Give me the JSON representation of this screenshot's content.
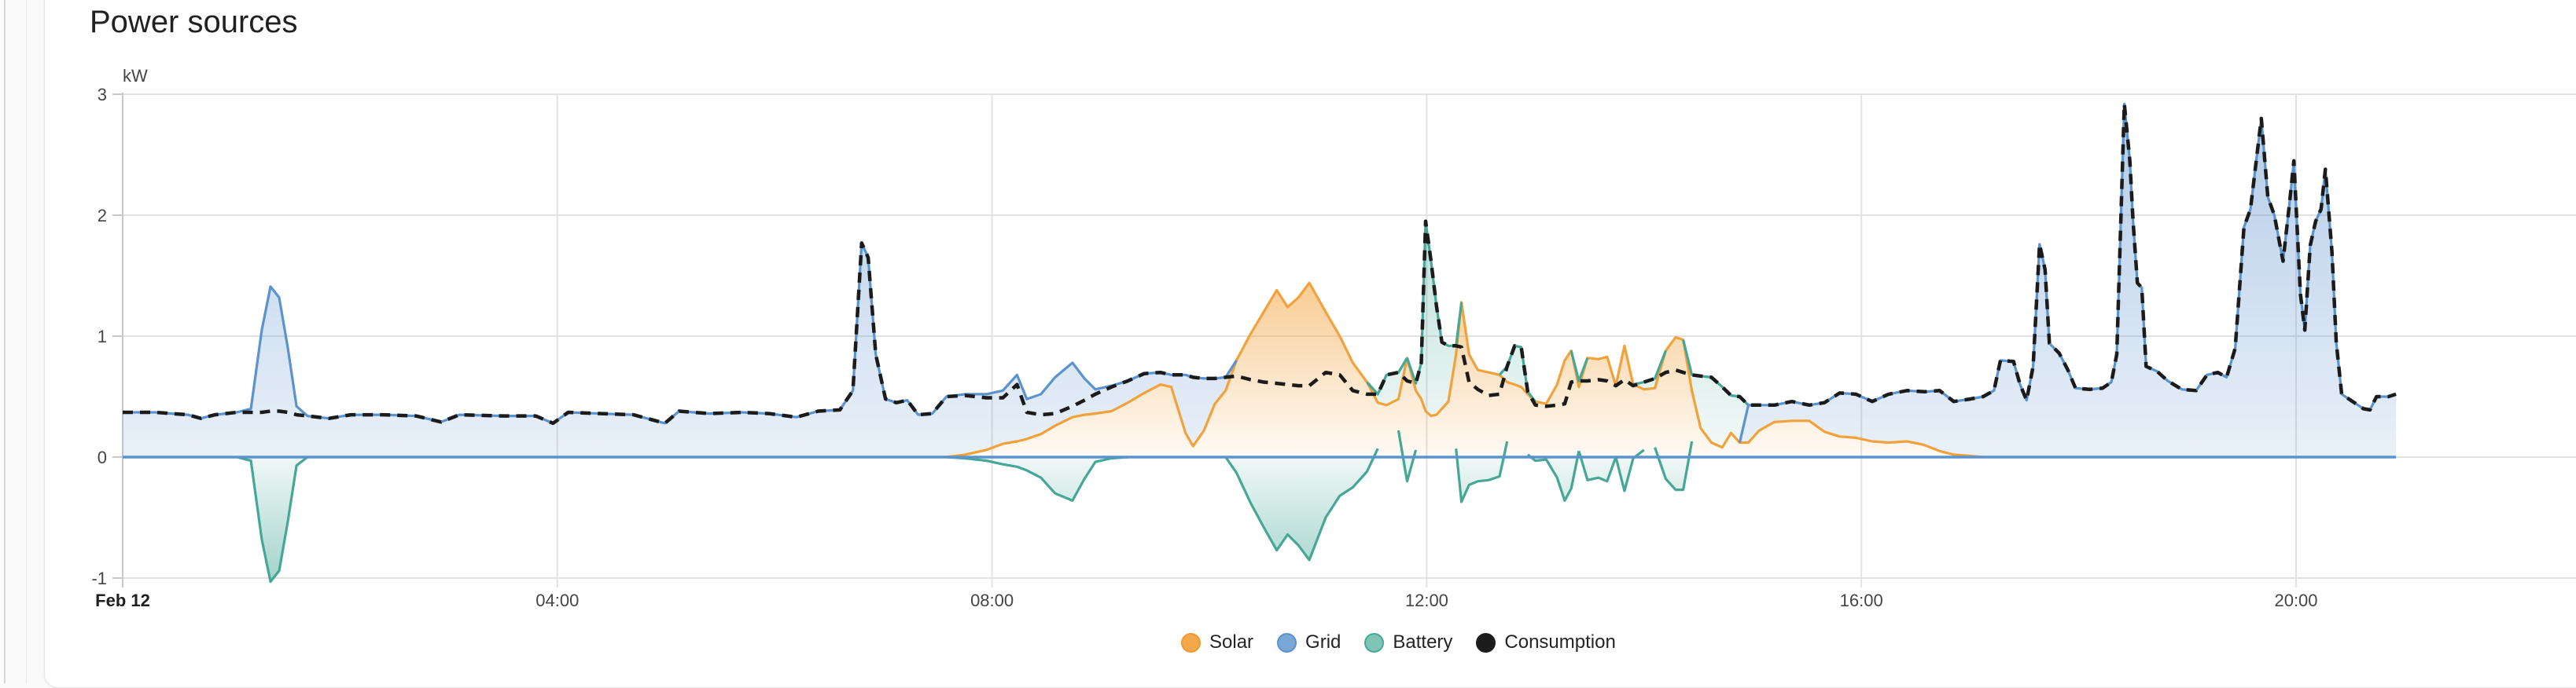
{
  "card": {
    "title": "Power sources"
  },
  "chart_data": {
    "type": "area",
    "stacked": true,
    "title": "Power sources",
    "unit": "kW",
    "grid": true,
    "legend_position": "bottom",
    "x_axis": {
      "start_label": "Feb 12",
      "start_hour": 0,
      "end_hour": 20.92,
      "ticks": [
        {
          "hour": 4,
          "label": "04:00"
        },
        {
          "hour": 8,
          "label": "08:00"
        },
        {
          "hour": 12,
          "label": "12:00"
        },
        {
          "hour": 16,
          "label": "16:00"
        },
        {
          "hour": 20,
          "label": "20:00"
        }
      ]
    },
    "y_axis": {
      "unit": "kW",
      "ticks": [
        3,
        2,
        1,
        0,
        -1
      ],
      "range": [
        -1,
        3
      ]
    },
    "legend": [
      {
        "name": "solar",
        "label": "Solar",
        "fill": "#F5A84B",
        "border": "#ED9B32"
      },
      {
        "name": "grid",
        "label": "Grid",
        "fill": "#7BA7D8",
        "border": "#5B93CE"
      },
      {
        "name": "battery",
        "label": "Battery",
        "fill": "#7FC4B5",
        "border": "#46A797"
      },
      {
        "name": "consumption",
        "label": "Consumption",
        "fill": "#1C1C1C",
        "border": "#1C1C1C"
      }
    ],
    "colors": {
      "solar_line": "#F2A23C",
      "grid_line": "#5B93CE",
      "battery_line": "#46A797",
      "consumption_line": "#1B1B1B",
      "gridline": "#E2E2E2",
      "axis": "#C7C7C7",
      "label": "#454545"
    },
    "series_stack_order": [
      "solar",
      "grid",
      "battery"
    ],
    "columns": [
      "hour",
      "solar_kw",
      "grid_kw",
      "battery_kw",
      "consumption_kw"
    ],
    "samples": [
      [
        0.0,
        0,
        0.37,
        0,
        0.37
      ],
      [
        0.3,
        0,
        0.37,
        0,
        0.37
      ],
      [
        0.6,
        0,
        0.35,
        0,
        0.35
      ],
      [
        0.72,
        0,
        0.32,
        0,
        0.32
      ],
      [
        0.85,
        0,
        0.35,
        0,
        0.35
      ],
      [
        1.05,
        0,
        0.37,
        0,
        0.37
      ],
      [
        1.18,
        0,
        0.4,
        -0.03,
        0.37
      ],
      [
        1.28,
        0,
        1.05,
        -0.68,
        0.37
      ],
      [
        1.36,
        0,
        1.41,
        -1.03,
        0.38
      ],
      [
        1.44,
        0,
        1.32,
        -0.94,
        0.38
      ],
      [
        1.52,
        0,
        0.9,
        -0.53,
        0.37
      ],
      [
        1.6,
        0,
        0.42,
        -0.07,
        0.35
      ],
      [
        1.7,
        0,
        0.34,
        0,
        0.34
      ],
      [
        1.9,
        0,
        0.32,
        0,
        0.32
      ],
      [
        2.1,
        0,
        0.35,
        0,
        0.35
      ],
      [
        2.4,
        0,
        0.35,
        0,
        0.35
      ],
      [
        2.7,
        0,
        0.34,
        0,
        0.34
      ],
      [
        2.93,
        0,
        0.29,
        0,
        0.29
      ],
      [
        3.1,
        0,
        0.35,
        0,
        0.35
      ],
      [
        3.5,
        0,
        0.34,
        0,
        0.34
      ],
      [
        3.8,
        0,
        0.34,
        0,
        0.34
      ],
      [
        3.96,
        0,
        0.28,
        0,
        0.28
      ],
      [
        4.1,
        0,
        0.37,
        0,
        0.37
      ],
      [
        4.4,
        0,
        0.36,
        0,
        0.36
      ],
      [
        4.7,
        0,
        0.35,
        0,
        0.35
      ],
      [
        4.99,
        0,
        0.28,
        0,
        0.28
      ],
      [
        5.12,
        0,
        0.38,
        0,
        0.38
      ],
      [
        5.4,
        0,
        0.36,
        0,
        0.36
      ],
      [
        5.7,
        0,
        0.37,
        0,
        0.37
      ],
      [
        5.95,
        0,
        0.36,
        0,
        0.36
      ],
      [
        6.2,
        0,
        0.33,
        0,
        0.33
      ],
      [
        6.4,
        0,
        0.38,
        0,
        0.38
      ],
      [
        6.6,
        0,
        0.39,
        0,
        0.39
      ],
      [
        6.72,
        0,
        0.55,
        0,
        0.55
      ],
      [
        6.8,
        0,
        1.77,
        0,
        1.77
      ],
      [
        6.86,
        0,
        1.65,
        0,
        1.65
      ],
      [
        6.93,
        0,
        0.85,
        0,
        0.85
      ],
      [
        7.02,
        0,
        0.48,
        0,
        0.48
      ],
      [
        7.12,
        0,
        0.45,
        0,
        0.45
      ],
      [
        7.22,
        0,
        0.47,
        0,
        0.47
      ],
      [
        7.32,
        0,
        0.35,
        0,
        0.35
      ],
      [
        7.45,
        0,
        0.36,
        0,
        0.36
      ],
      [
        7.58,
        0,
        0.5,
        0,
        0.5
      ],
      [
        7.75,
        0.02,
        0.5,
        -0.01,
        0.51
      ],
      [
        7.95,
        0.06,
        0.46,
        -0.03,
        0.49
      ],
      [
        8.1,
        0.11,
        0.44,
        -0.06,
        0.49
      ],
      [
        8.23,
        0.13,
        0.55,
        -0.08,
        0.6
      ],
      [
        8.32,
        0.15,
        0.33,
        -0.11,
        0.37
      ],
      [
        8.45,
        0.19,
        0.33,
        -0.17,
        0.35
      ],
      [
        8.58,
        0.26,
        0.4,
        -0.3,
        0.36
      ],
      [
        8.74,
        0.33,
        0.45,
        -0.36,
        0.42
      ],
      [
        8.85,
        0.35,
        0.3,
        -0.18,
        0.47
      ],
      [
        8.95,
        0.36,
        0.2,
        -0.04,
        0.52
      ],
      [
        9.1,
        0.38,
        0.21,
        -0.01,
        0.58
      ],
      [
        9.25,
        0.45,
        0.18,
        0,
        0.63
      ],
      [
        9.4,
        0.53,
        0.16,
        0,
        0.69
      ],
      [
        9.55,
        0.6,
        0.1,
        0,
        0.7
      ],
      [
        9.65,
        0.58,
        0.1,
        0,
        0.68
      ],
      [
        9.78,
        0.2,
        0.48,
        0,
        0.68
      ],
      [
        9.85,
        0.09,
        0.57,
        0,
        0.66
      ],
      [
        9.95,
        0.22,
        0.43,
        0,
        0.65
      ],
      [
        10.05,
        0.44,
        0.21,
        0,
        0.65
      ],
      [
        10.15,
        0.55,
        0.11,
        0,
        0.66
      ],
      [
        10.25,
        0.8,
        0,
        -0.13,
        0.67
      ],
      [
        10.38,
        1.02,
        0,
        -0.38,
        0.64
      ],
      [
        10.5,
        1.2,
        0,
        -0.58,
        0.62
      ],
      [
        10.62,
        1.38,
        0,
        -0.77,
        0.61
      ],
      [
        10.72,
        1.24,
        0,
        -0.64,
        0.6
      ],
      [
        10.82,
        1.32,
        0,
        -0.73,
        0.59
      ],
      [
        10.92,
        1.44,
        0,
        -0.85,
        0.59
      ],
      [
        11.07,
        1.2,
        0,
        -0.5,
        0.7
      ],
      [
        11.2,
        1.0,
        0,
        -0.32,
        0.68
      ],
      [
        11.32,
        0.78,
        0,
        -0.25,
        0.55
      ],
      [
        11.45,
        0.62,
        0,
        -0.12,
        0.52
      ],
      [
        11.55,
        0.45,
        0,
        0.07,
        0.52
      ],
      [
        11.63,
        0.43,
        0,
        0.25,
        0.68
      ],
      [
        11.74,
        0.48,
        0,
        0.22,
        0.7
      ],
      [
        11.82,
        0.82,
        0,
        -0.2,
        0.63
      ],
      [
        11.9,
        0.55,
        0,
        0.06,
        0.61
      ],
      [
        11.95,
        0.48,
        0,
        0.3,
        0.78
      ],
      [
        11.99,
        0.38,
        0,
        1.57,
        1.95
      ],
      [
        12.04,
        0.34,
        0,
        1.28,
        1.62
      ],
      [
        12.09,
        0.35,
        0,
        0.9,
        1.25
      ],
      [
        12.14,
        0.4,
        0,
        0.55,
        0.95
      ],
      [
        12.2,
        0.46,
        0,
        0.46,
        0.92
      ],
      [
        12.27,
        0.85,
        0,
        0.07,
        0.92
      ],
      [
        12.32,
        1.28,
        0,
        -0.37,
        0.91
      ],
      [
        12.39,
        0.85,
        0,
        -0.23,
        0.62
      ],
      [
        12.47,
        0.72,
        0,
        -0.2,
        0.56
      ],
      [
        12.57,
        0.7,
        0,
        -0.19,
        0.51
      ],
      [
        12.67,
        0.68,
        0,
        -0.16,
        0.52
      ],
      [
        12.74,
        0.62,
        0,
        0.13,
        0.75
      ],
      [
        12.81,
        0.6,
        0,
        0.32,
        0.92
      ],
      [
        12.87,
        0.58,
        0,
        0.33,
        0.91
      ],
      [
        12.93,
        0.52,
        0,
        0.02,
        0.54
      ],
      [
        13.0,
        0.46,
        0,
        -0.03,
        0.43
      ],
      [
        13.1,
        0.44,
        0,
        -0.02,
        0.42
      ],
      [
        13.2,
        0.6,
        0,
        -0.17,
        0.43
      ],
      [
        13.27,
        0.8,
        0,
        -0.36,
        0.44
      ],
      [
        13.33,
        0.88,
        0,
        -0.26,
        0.62
      ],
      [
        13.4,
        0.58,
        0,
        0.05,
        0.63
      ],
      [
        13.48,
        0.82,
        0,
        -0.19,
        0.63
      ],
      [
        13.58,
        0.81,
        0,
        -0.17,
        0.64
      ],
      [
        13.66,
        0.83,
        0,
        -0.2,
        0.63
      ],
      [
        13.74,
        0.59,
        0,
        0.0,
        0.59
      ],
      [
        13.82,
        0.92,
        0,
        -0.28,
        0.64
      ],
      [
        13.9,
        0.6,
        0,
        -0.01,
        0.59
      ],
      [
        14.0,
        0.56,
        0,
        0.06,
        0.62
      ],
      [
        14.1,
        0.57,
        0,
        0.08,
        0.65
      ],
      [
        14.2,
        0.88,
        0,
        -0.18,
        0.7
      ],
      [
        14.29,
        0.99,
        0,
        -0.27,
        0.72
      ],
      [
        14.36,
        0.97,
        0,
        -0.27,
        0.7
      ],
      [
        14.44,
        0.55,
        0,
        0.13,
        0.68
      ],
      [
        14.52,
        0.24,
        0,
        0.43,
        0.67
      ],
      [
        14.62,
        0.12,
        0,
        0.54,
        0.66
      ],
      [
        14.72,
        0.08,
        0,
        0.5,
        0.58
      ],
      [
        14.8,
        0.2,
        0,
        0.31,
        0.51
      ],
      [
        14.88,
        0.12,
        0,
        0.38,
        0.5
      ],
      [
        14.96,
        0.12,
        0.31,
        0,
        0.43
      ],
      [
        15.06,
        0.22,
        0.21,
        0,
        0.43
      ],
      [
        15.2,
        0.29,
        0.14,
        0,
        0.43
      ],
      [
        15.36,
        0.3,
        0.16,
        0,
        0.46
      ],
      [
        15.52,
        0.3,
        0.13,
        0,
        0.43
      ],
      [
        15.66,
        0.21,
        0.24,
        0,
        0.45
      ],
      [
        15.8,
        0.17,
        0.36,
        0,
        0.53
      ],
      [
        15.95,
        0.16,
        0.36,
        0,
        0.52
      ],
      [
        16.1,
        0.13,
        0.33,
        0,
        0.46
      ],
      [
        16.25,
        0.12,
        0.4,
        0,
        0.52
      ],
      [
        16.42,
        0.13,
        0.42,
        0,
        0.55
      ],
      [
        16.58,
        0.1,
        0.44,
        0,
        0.54
      ],
      [
        16.72,
        0.05,
        0.5,
        0,
        0.55
      ],
      [
        16.85,
        0.02,
        0.44,
        0,
        0.46
      ],
      [
        17.0,
        0.01,
        0.47,
        0,
        0.48
      ],
      [
        17.12,
        0,
        0.5,
        0,
        0.5
      ],
      [
        17.22,
        0,
        0.55,
        0,
        0.55
      ],
      [
        17.28,
        0,
        0.8,
        0,
        0.8
      ],
      [
        17.4,
        0,
        0.79,
        0,
        0.79
      ],
      [
        17.46,
        0,
        0.6,
        0,
        0.6
      ],
      [
        17.52,
        0,
        0.47,
        0,
        0.47
      ],
      [
        17.58,
        0,
        0.75,
        0,
        0.75
      ],
      [
        17.64,
        0,
        1.76,
        0,
        1.76
      ],
      [
        17.69,
        0,
        1.55,
        0,
        1.55
      ],
      [
        17.73,
        0,
        0.94,
        0,
        0.94
      ],
      [
        17.82,
        0,
        0.86,
        0,
        0.86
      ],
      [
        17.9,
        0,
        0.72,
        0,
        0.72
      ],
      [
        17.97,
        0,
        0.57,
        0,
        0.57
      ],
      [
        18.1,
        0,
        0.56,
        0,
        0.56
      ],
      [
        18.22,
        0,
        0.57,
        0,
        0.57
      ],
      [
        18.3,
        0,
        0.62,
        0,
        0.62
      ],
      [
        18.35,
        0,
        0.85,
        0,
        0.85
      ],
      [
        18.42,
        0,
        2.92,
        0,
        2.92
      ],
      [
        18.47,
        0,
        2.45,
        0,
        2.45
      ],
      [
        18.5,
        0,
        1.95,
        0,
        1.95
      ],
      [
        18.54,
        0,
        1.44,
        0,
        1.44
      ],
      [
        18.58,
        0,
        1.4,
        0,
        1.4
      ],
      [
        18.62,
        0,
        0.75,
        0,
        0.75
      ],
      [
        18.72,
        0,
        0.71,
        0,
        0.71
      ],
      [
        18.82,
        0,
        0.63,
        0,
        0.63
      ],
      [
        18.95,
        0,
        0.56,
        0,
        0.56
      ],
      [
        19.08,
        0,
        0.55,
        0,
        0.55
      ],
      [
        19.18,
        0,
        0.68,
        0,
        0.68
      ],
      [
        19.28,
        0,
        0.7,
        0,
        0.7
      ],
      [
        19.36,
        0,
        0.66,
        0,
        0.66
      ],
      [
        19.44,
        0,
        0.9,
        0,
        0.9
      ],
      [
        19.52,
        0,
        1.9,
        0,
        1.9
      ],
      [
        19.58,
        0,
        2.05,
        0,
        2.05
      ],
      [
        19.68,
        0,
        2.8,
        0,
        2.8
      ],
      [
        19.74,
        0,
        2.15,
        0,
        2.15
      ],
      [
        19.8,
        0,
        2.0,
        0,
        2.0
      ],
      [
        19.88,
        0,
        1.62,
        0,
        1.62
      ],
      [
        19.94,
        0,
        2.1,
        0,
        2.1
      ],
      [
        19.98,
        0,
        2.45,
        0,
        2.45
      ],
      [
        20.04,
        0,
        1.35,
        0,
        1.35
      ],
      [
        20.08,
        0,
        1.05,
        0,
        1.05
      ],
      [
        20.13,
        0,
        1.75,
        0,
        1.75
      ],
      [
        20.18,
        0,
        1.95,
        0,
        1.95
      ],
      [
        20.23,
        0,
        2.05,
        0,
        2.05
      ],
      [
        20.27,
        0,
        2.38,
        0,
        2.38
      ],
      [
        20.33,
        0,
        1.7,
        0,
        1.7
      ],
      [
        20.37,
        0,
        0.95,
        0,
        0.95
      ],
      [
        20.42,
        0,
        0.52,
        0,
        0.52
      ],
      [
        20.52,
        0,
        0.46,
        0,
        0.46
      ],
      [
        20.62,
        0,
        0.4,
        0,
        0.4
      ],
      [
        20.68,
        0,
        0.39,
        0,
        0.39
      ],
      [
        20.74,
        0,
        0.5,
        0,
        0.5
      ],
      [
        20.85,
        0,
        0.5,
        0,
        0.5
      ],
      [
        20.92,
        0,
        0.52,
        0,
        0.52
      ]
    ]
  }
}
